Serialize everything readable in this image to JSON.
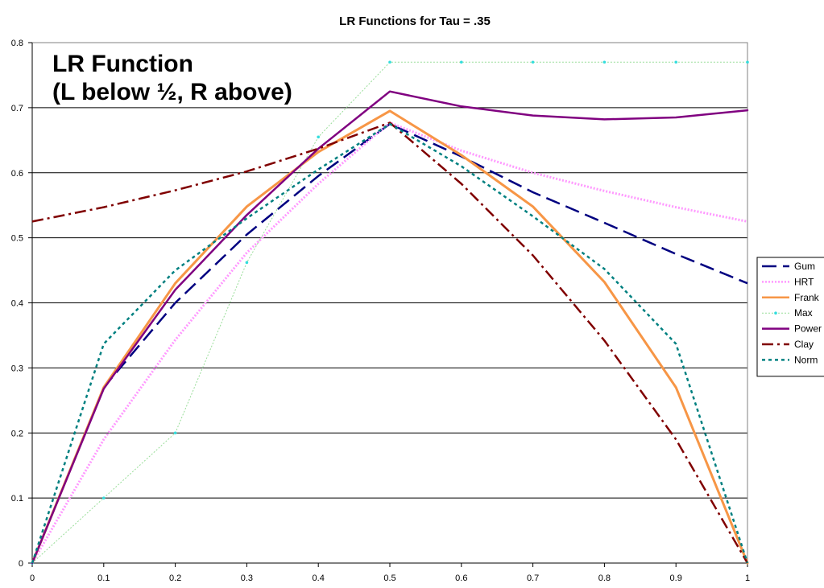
{
  "chart_data": {
    "type": "line",
    "title": "LR Functions for Tau = .35",
    "annotation": [
      "LR Function",
      "(L below ½, R above)"
    ],
    "xlabel": "",
    "ylabel": "",
    "xlim": [
      0,
      1
    ],
    "ylim": [
      0,
      0.8
    ],
    "x_ticks": [
      "0",
      "0.1",
      "0.2",
      "0.3",
      "0.4",
      "0.5",
      "0.6",
      "0.7",
      "0.8",
      "0.9",
      "1"
    ],
    "y_ticks": [
      "0",
      "0.1",
      "0.2",
      "0.3",
      "0.4",
      "0.5",
      "0.6",
      "0.7",
      "0.8"
    ],
    "grid": "horizontal",
    "legend_position": "right",
    "x": [
      0,
      0.1,
      0.2,
      0.3,
      0.4,
      0.5,
      0.6,
      0.7,
      0.8,
      0.9,
      1
    ],
    "series": [
      {
        "name": "Gum",
        "color": "#000080",
        "dash": "long-dash",
        "marker": false,
        "values": [
          0,
          0.27,
          0.4,
          0.505,
          0.595,
          0.675,
          0.625,
          0.57,
          0.523,
          0.475,
          0.43
        ]
      },
      {
        "name": "HRT",
        "color": "#ff99ff",
        "dash": "dotted-thick",
        "marker": false,
        "values": [
          0,
          0.19,
          0.343,
          0.477,
          0.583,
          0.677,
          0.634,
          0.6,
          0.572,
          0.547,
          0.525
        ]
      },
      {
        "name": "Frank",
        "color": "#f79646",
        "dash": "solid",
        "marker": false,
        "values": [
          0,
          0.27,
          0.43,
          0.548,
          0.632,
          0.695,
          0.627,
          0.548,
          0.432,
          0.27,
          0
        ]
      },
      {
        "name": "Max",
        "color": "#99dd99",
        "dash": "dotted",
        "marker": true,
        "marker_color": "#33dddd",
        "values": [
          0,
          0.1,
          0.2,
          0.462,
          0.655,
          0.77,
          0.77,
          0.77,
          0.77,
          0.77,
          0.77
        ]
      },
      {
        "name": "Power",
        "color": "#800080",
        "dash": "solid",
        "marker": false,
        "values": [
          0,
          0.268,
          0.42,
          0.535,
          0.637,
          0.725,
          0.702,
          0.688,
          0.682,
          0.685,
          0.696
        ]
      },
      {
        "name": "Clay",
        "color": "#800000",
        "dash": "dash-dot",
        "marker": false,
        "values": [
          0.525,
          0.547,
          0.573,
          0.602,
          0.637,
          0.677,
          0.583,
          0.473,
          0.342,
          0.19,
          0
        ]
      },
      {
        "name": "Norm",
        "color": "#008080",
        "dash": "dotted-square",
        "marker": false,
        "values": [
          0,
          0.337,
          0.45,
          0.53,
          0.605,
          0.675,
          0.61,
          0.533,
          0.452,
          0.337,
          0
        ]
      }
    ]
  }
}
